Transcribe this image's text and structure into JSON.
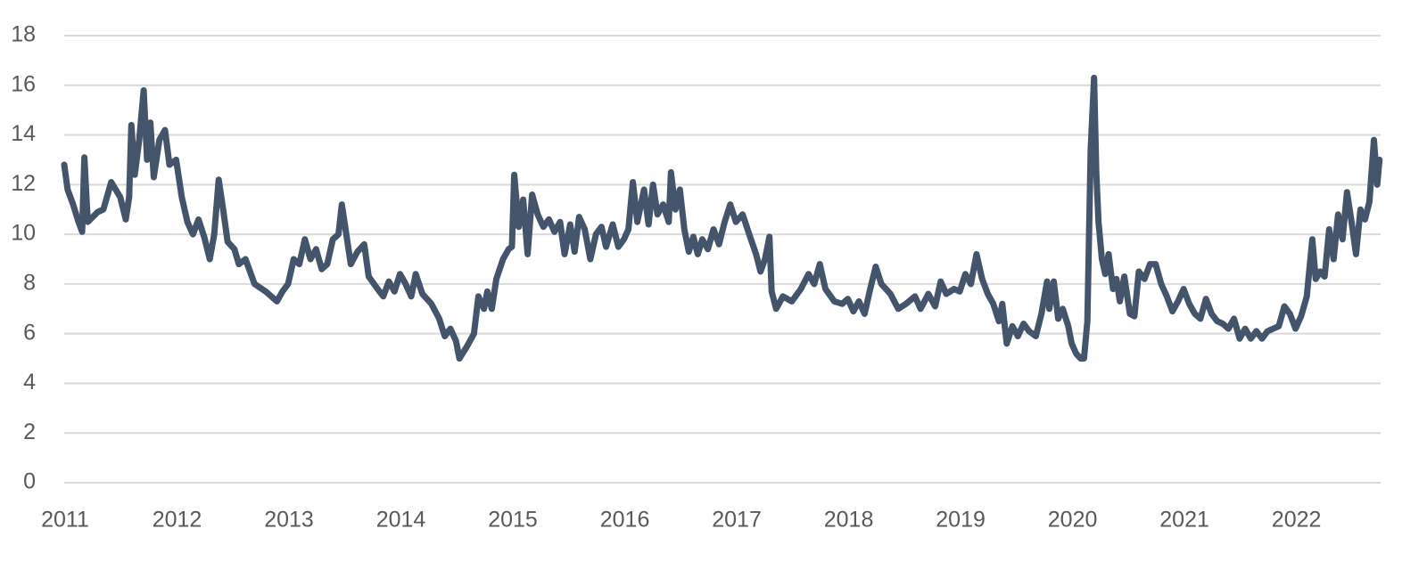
{
  "chart_data": {
    "type": "line",
    "x": [
      2011.0,
      2011.03,
      2011.08,
      2011.12,
      2011.16,
      2011.18,
      2011.21,
      2011.3,
      2011.35,
      2011.42,
      2011.5,
      2011.55,
      2011.58,
      2011.6,
      2011.63,
      2011.67,
      2011.71,
      2011.74,
      2011.77,
      2011.8,
      2011.85,
      2011.9,
      2011.94,
      2012.0,
      2012.05,
      2012.1,
      2012.15,
      2012.2,
      2012.25,
      2012.3,
      2012.34,
      2012.38,
      2012.42,
      2012.46,
      2012.52,
      2012.56,
      2012.62,
      2012.7,
      2012.8,
      2012.9,
      2012.95,
      2013.0,
      2013.05,
      2013.1,
      2013.15,
      2013.2,
      2013.25,
      2013.3,
      2013.35,
      2013.4,
      2013.45,
      2013.48,
      2013.52,
      2013.56,
      2013.62,
      2013.68,
      2013.72,
      2013.8,
      2013.85,
      2013.9,
      2013.95,
      2014.0,
      2014.05,
      2014.1,
      2014.14,
      2014.2,
      2014.28,
      2014.35,
      2014.4,
      2014.45,
      2014.5,
      2014.53,
      2014.6,
      2014.66,
      2014.7,
      2014.75,
      2014.78,
      2014.82,
      2014.86,
      2014.92,
      2014.97,
      2015.0,
      2015.02,
      2015.06,
      2015.1,
      2015.14,
      2015.18,
      2015.23,
      2015.28,
      2015.33,
      2015.38,
      2015.43,
      2015.47,
      2015.52,
      2015.56,
      2015.6,
      2015.65,
      2015.7,
      2015.75,
      2015.8,
      2015.84,
      2015.9,
      2015.95,
      2016.0,
      2016.04,
      2016.08,
      2016.12,
      2016.18,
      2016.22,
      2016.26,
      2016.3,
      2016.35,
      2016.4,
      2016.42,
      2016.46,
      2016.5,
      2016.54,
      2016.58,
      2016.62,
      2016.66,
      2016.7,
      2016.75,
      2016.8,
      2016.85,
      2016.9,
      2016.95,
      2017.0,
      2017.06,
      2017.12,
      2017.18,
      2017.22,
      2017.26,
      2017.3,
      2017.32,
      2017.36,
      2017.42,
      2017.5,
      2017.58,
      2017.65,
      2017.7,
      2017.75,
      2017.8,
      2017.88,
      2017.95,
      2018.0,
      2018.05,
      2018.1,
      2018.15,
      2018.2,
      2018.25,
      2018.3,
      2018.38,
      2018.45,
      2018.52,
      2018.6,
      2018.65,
      2018.72,
      2018.78,
      2018.83,
      2018.88,
      2018.95,
      2019.0,
      2019.05,
      2019.1,
      2019.15,
      2019.2,
      2019.25,
      2019.3,
      2019.35,
      2019.38,
      2019.42,
      2019.47,
      2019.52,
      2019.57,
      2019.62,
      2019.68,
      2019.73,
      2019.78,
      2019.8,
      2019.84,
      2019.88,
      2019.92,
      2019.97,
      2020.0,
      2020.04,
      2020.08,
      2020.11,
      2020.14,
      2020.17,
      2020.2,
      2020.22,
      2020.24,
      2020.27,
      2020.3,
      2020.33,
      2020.37,
      2020.4,
      2020.43,
      2020.47,
      2020.52,
      2020.56,
      2020.6,
      2020.65,
      2020.7,
      2020.75,
      2020.8,
      2020.85,
      2020.9,
      2020.95,
      2021.0,
      2021.05,
      2021.1,
      2021.15,
      2021.2,
      2021.25,
      2021.3,
      2021.35,
      2021.4,
      2021.45,
      2021.5,
      2021.55,
      2021.6,
      2021.65,
      2021.7,
      2021.75,
      2021.8,
      2021.85,
      2021.9,
      2021.95,
      2022.0,
      2022.05,
      2022.1,
      2022.15,
      2022.18,
      2022.22,
      2022.26,
      2022.3,
      2022.34,
      2022.38,
      2022.42,
      2022.46,
      2022.5,
      2022.54,
      2022.58,
      2022.62,
      2022.66,
      2022.7,
      2022.73,
      2022.75
    ],
    "values": [
      12.8,
      11.8,
      11.2,
      10.6,
      10.1,
      13.1,
      10.5,
      10.9,
      11.0,
      12.1,
      11.5,
      10.6,
      11.5,
      14.4,
      12.4,
      13.8,
      15.8,
      13.0,
      14.5,
      12.3,
      13.8,
      14.2,
      12.8,
      13.0,
      11.5,
      10.5,
      10.0,
      10.6,
      9.9,
      9.0,
      10.0,
      12.2,
      11.0,
      9.7,
      9.4,
      8.8,
      9.0,
      8.0,
      7.7,
      7.3,
      7.7,
      8.0,
      9.0,
      8.8,
      9.8,
      9.0,
      9.4,
      8.6,
      8.8,
      9.8,
      10.0,
      11.2,
      10.0,
      8.8,
      9.3,
      9.6,
      8.3,
      7.8,
      7.5,
      8.1,
      7.7,
      8.4,
      8.0,
      7.5,
      8.4,
      7.6,
      7.2,
      6.6,
      5.9,
      6.2,
      5.7,
      5.0,
      5.5,
      6.0,
      7.5,
      7.0,
      7.7,
      7.0,
      8.2,
      9.0,
      9.4,
      9.5,
      12.4,
      10.3,
      11.4,
      9.2,
      11.6,
      10.8,
      10.3,
      10.6,
      10.1,
      10.5,
      9.2,
      10.4,
      9.3,
      10.7,
      10.2,
      9.0,
      10.0,
      10.3,
      9.5,
      10.4,
      9.5,
      9.8,
      10.2,
      12.1,
      10.5,
      11.8,
      10.4,
      12.0,
      10.8,
      11.2,
      10.5,
      12.5,
      11.0,
      11.8,
      10.2,
      9.3,
      9.9,
      9.2,
      9.8,
      9.4,
      10.2,
      9.6,
      10.5,
      11.2,
      10.5,
      10.8,
      10.0,
      9.2,
      8.5,
      9.0,
      9.9,
      7.7,
      7.0,
      7.5,
      7.3,
      7.8,
      8.4,
      8.0,
      8.8,
      7.8,
      7.3,
      7.2,
      7.4,
      6.9,
      7.3,
      6.8,
      7.8,
      8.7,
      8.0,
      7.6,
      7.0,
      7.2,
      7.5,
      7.0,
      7.6,
      7.1,
      8.1,
      7.6,
      7.8,
      7.7,
      8.4,
      8.0,
      9.2,
      8.2,
      7.6,
      7.2,
      6.5,
      7.2,
      5.6,
      6.3,
      5.9,
      6.4,
      6.1,
      5.9,
      6.8,
      8.1,
      7.0,
      8.1,
      6.6,
      7.0,
      6.3,
      5.6,
      5.2,
      5.0,
      5.0,
      6.5,
      13.4,
      16.3,
      12.5,
      10.5,
      9.0,
      8.4,
      9.2,
      7.8,
      8.2,
      7.3,
      8.3,
      6.8,
      6.7,
      8.5,
      8.2,
      8.8,
      8.8,
      8.0,
      7.5,
      6.9,
      7.3,
      7.8,
      7.2,
      6.8,
      6.6,
      7.4,
      6.8,
      6.5,
      6.4,
      6.2,
      6.6,
      5.8,
      6.2,
      5.8,
      6.1,
      5.8,
      6.1,
      6.2,
      6.3,
      7.1,
      6.8,
      6.2,
      6.7,
      7.5,
      9.8,
      8.2,
      8.5,
      8.3,
      10.2,
      9.0,
      10.8,
      9.8,
      11.7,
      10.5,
      9.2,
      11.0,
      10.6,
      11.3,
      13.8,
      12.0,
      13.0
    ],
    "color": "#44546a",
    "xlim": [
      2011,
      2022.76
    ],
    "xticks": [
      2011,
      2012,
      2013,
      2014,
      2015,
      2016,
      2017,
      2018,
      2019,
      2020,
      2021,
      2022
    ],
    "ylim": [
      0,
      18
    ],
    "yticks": [
      0,
      2,
      4,
      6,
      8,
      10,
      12,
      14,
      16,
      18
    ],
    "grid": true
  }
}
